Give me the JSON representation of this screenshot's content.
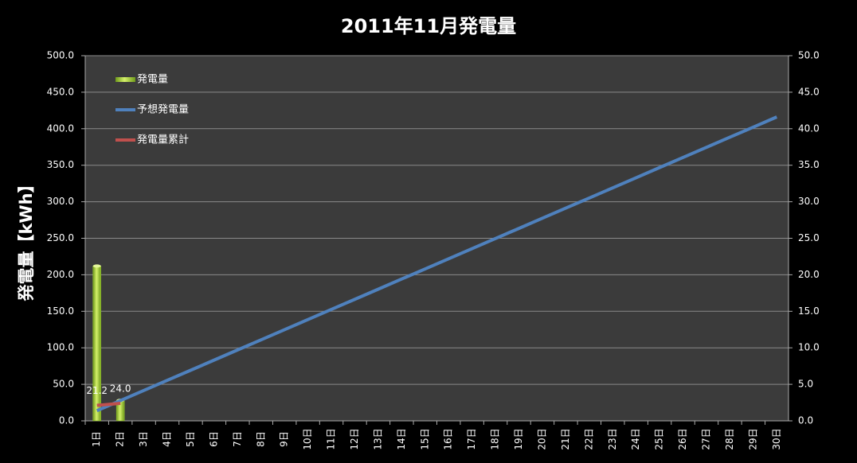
{
  "chart_data": {
    "type": "bar-line",
    "title": "2011年11月発電量",
    "ylabel": "発電量【kWh】",
    "categories": [
      "1日",
      "2日",
      "3日",
      "4日",
      "5日",
      "6日",
      "7日",
      "8日",
      "9日",
      "10日",
      "11日",
      "12日",
      "13日",
      "14日",
      "15日",
      "16日",
      "17日",
      "18日",
      "19日",
      "20日",
      "21日",
      "22日",
      "23日",
      "24日",
      "25日",
      "26日",
      "27日",
      "28日",
      "29日",
      "30日"
    ],
    "series": [
      {
        "name": "発電量",
        "type": "bar",
        "axis": "y2",
        "color": "#9bcf2e",
        "values": [
          21.2,
          2.8,
          null,
          null,
          null,
          null,
          null,
          null,
          null,
          null,
          null,
          null,
          null,
          null,
          null,
          null,
          null,
          null,
          null,
          null,
          null,
          null,
          null,
          null,
          null,
          null,
          null,
          null,
          null,
          null
        ]
      },
      {
        "name": "予想発電量",
        "type": "line",
        "color": "#4f81bd",
        "values": [
          13.9,
          27.7,
          41.6,
          55.5,
          69.3,
          83.2,
          97.1,
          110.9,
          124.8,
          138.7,
          152.6,
          166.4,
          180.3,
          194.2,
          208.0,
          221.9,
          235.8,
          249.7,
          263.5,
          277.4,
          291.3,
          305.1,
          319.0,
          332.9,
          346.8,
          360.6,
          374.5,
          388.4,
          402.2,
          416.1
        ]
      },
      {
        "name": "発電量累計",
        "type": "line",
        "color": "#c0504d",
        "values": [
          21.2,
          24.0,
          null,
          null,
          null,
          null,
          null,
          null,
          null,
          null,
          null,
          null,
          null,
          null,
          null,
          null,
          null,
          null,
          null,
          null,
          null,
          null,
          null,
          null,
          null,
          null,
          null,
          null,
          null,
          null
        ],
        "value_labels": [
          "21.2",
          "24.0",
          null,
          null,
          null,
          null,
          null,
          null,
          null,
          null,
          null,
          null,
          null,
          null,
          null,
          null,
          null,
          null,
          null,
          null,
          null,
          null,
          null,
          null,
          null,
          null,
          null,
          null,
          null,
          null
        ]
      }
    ],
    "ylim": [
      0,
      500
    ],
    "yticks": [
      {
        "value": 0,
        "label": "0.0"
      },
      {
        "value": 50,
        "label": "50.0"
      },
      {
        "value": 100,
        "label": "100.0"
      },
      {
        "value": 150,
        "label": "150.0"
      },
      {
        "value": 200,
        "label": "200.0"
      },
      {
        "value": 250,
        "label": "250.0"
      },
      {
        "value": 300,
        "label": "300.0"
      },
      {
        "value": 350,
        "label": "350.0"
      },
      {
        "value": 400,
        "label": "400.0"
      },
      {
        "value": 450,
        "label": "450.0"
      },
      {
        "value": 500,
        "label": "500.0"
      }
    ],
    "y2lim": [
      0,
      50
    ],
    "y2ticks": [
      {
        "value": 0,
        "label": "0.0"
      },
      {
        "value": 5,
        "label": "5.0"
      },
      {
        "value": 10,
        "label": "10.0"
      },
      {
        "value": 15,
        "label": "15.0"
      },
      {
        "value": 20,
        "label": "20.0"
      },
      {
        "value": 25,
        "label": "25.0"
      },
      {
        "value": 30,
        "label": "30.0"
      },
      {
        "value": 35,
        "label": "35.0"
      },
      {
        "value": 40,
        "label": "40.0"
      },
      {
        "value": 45,
        "label": "45.0"
      },
      {
        "value": 50,
        "label": "50.0"
      }
    ],
    "grid": true,
    "legend": "top-left"
  }
}
